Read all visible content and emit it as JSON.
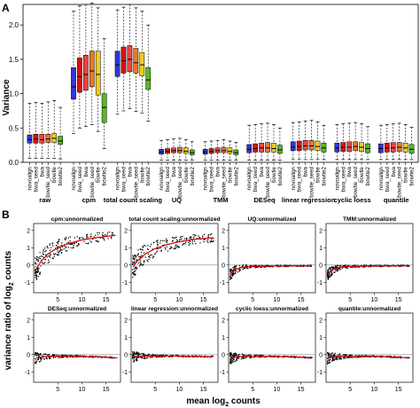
{
  "chart_data": [
    {
      "type": "box",
      "panel_letter": "A",
      "ylabel": "Variance",
      "ylim": [
        0,
        2.0
      ],
      "y_ticks": [
        "0.0",
        "0.5",
        "1.0",
        "1.5",
        "2.0"
      ],
      "aligners": [
        "novoalign",
        "bwa_seed",
        "bwa",
        "bowtie_seed",
        "bowtie",
        "bowtie2"
      ],
      "aligner_colors": [
        "#3333dd",
        "#dd1111",
        "#ee4444",
        "#ee7722",
        "#eecc22",
        "#55bb22"
      ],
      "groups": [
        {
          "name": "raw",
          "boxes": [
            {
              "q1": 0.28,
              "med": 0.33,
              "q3": 0.4,
              "wlo": 0.06,
              "whi": 0.86
            },
            {
              "q1": 0.28,
              "med": 0.34,
              "q3": 0.41,
              "wlo": 0.06,
              "whi": 0.87
            },
            {
              "q1": 0.28,
              "med": 0.33,
              "q3": 0.41,
              "wlo": 0.06,
              "whi": 0.86
            },
            {
              "q1": 0.29,
              "med": 0.34,
              "q3": 0.41,
              "wlo": 0.06,
              "whi": 0.88
            },
            {
              "q1": 0.29,
              "med": 0.35,
              "q3": 0.42,
              "wlo": 0.06,
              "whi": 0.9
            },
            {
              "q1": 0.26,
              "med": 0.31,
              "q3": 0.38,
              "wlo": 0.05,
              "whi": 0.8
            }
          ]
        },
        {
          "name": "cpm",
          "boxes": [
            {
              "q1": 0.92,
              "med": 1.1,
              "q3": 1.38,
              "wlo": 0.42,
              "whi": 2.2
            },
            {
              "q1": 1.02,
              "med": 1.25,
              "q3": 1.52,
              "wlo": 0.5,
              "whi": 2.28
            },
            {
              "q1": 1.05,
              "med": 1.28,
              "q3": 1.56,
              "wlo": 0.52,
              "whi": 2.3
            },
            {
              "q1": 1.1,
              "med": 1.33,
              "q3": 1.62,
              "wlo": 0.55,
              "whi": 2.32
            },
            {
              "q1": 0.98,
              "med": 1.28,
              "q3": 1.62,
              "wlo": 0.45,
              "whi": 2.25
            },
            {
              "q1": 0.58,
              "med": 0.8,
              "q3": 1.0,
              "wlo": 0.2,
              "whi": 1.8
            }
          ]
        },
        {
          "name": "total count scaling",
          "boxes": [
            {
              "q1": 1.25,
              "med": 1.42,
              "q3": 1.62,
              "wlo": 0.7,
              "whi": 2.22
            },
            {
              "q1": 1.3,
              "med": 1.48,
              "q3": 1.68,
              "wlo": 0.75,
              "whi": 2.26
            },
            {
              "q1": 1.32,
              "med": 1.5,
              "q3": 1.7,
              "wlo": 0.78,
              "whi": 2.3
            },
            {
              "q1": 1.3,
              "med": 1.45,
              "q3": 1.66,
              "wlo": 0.74,
              "whi": 2.25
            },
            {
              "q1": 1.26,
              "med": 1.42,
              "q3": 1.6,
              "wlo": 0.72,
              "whi": 2.2
            },
            {
              "q1": 1.06,
              "med": 1.2,
              "q3": 1.38,
              "wlo": 0.6,
              "whi": 2.0
            }
          ]
        },
        {
          "name": "UQ",
          "boxes": [
            {
              "q1": 0.12,
              "med": 0.15,
              "q3": 0.19,
              "wlo": 0.03,
              "whi": 0.32
            },
            {
              "q1": 0.13,
              "med": 0.16,
              "q3": 0.2,
              "wlo": 0.03,
              "whi": 0.33
            },
            {
              "q1": 0.14,
              "med": 0.17,
              "q3": 0.21,
              "wlo": 0.03,
              "whi": 0.34
            },
            {
              "q1": 0.14,
              "med": 0.17,
              "q3": 0.22,
              "wlo": 0.03,
              "whi": 0.35
            },
            {
              "q1": 0.13,
              "med": 0.16,
              "q3": 0.21,
              "wlo": 0.03,
              "whi": 0.33
            },
            {
              "q1": 0.11,
              "med": 0.14,
              "q3": 0.18,
              "wlo": 0.03,
              "whi": 0.3
            }
          ]
        },
        {
          "name": "TMM",
          "boxes": [
            {
              "q1": 0.12,
              "med": 0.15,
              "q3": 0.19,
              "wlo": 0.03,
              "whi": 0.3
            },
            {
              "q1": 0.13,
              "med": 0.16,
              "q3": 0.2,
              "wlo": 0.03,
              "whi": 0.31
            },
            {
              "q1": 0.14,
              "med": 0.17,
              "q3": 0.21,
              "wlo": 0.03,
              "whi": 0.32
            },
            {
              "q1": 0.14,
              "med": 0.17,
              "q3": 0.22,
              "wlo": 0.03,
              "whi": 0.33
            },
            {
              "q1": 0.13,
              "med": 0.16,
              "q3": 0.21,
              "wlo": 0.03,
              "whi": 0.31
            },
            {
              "q1": 0.11,
              "med": 0.14,
              "q3": 0.18,
              "wlo": 0.03,
              "whi": 0.29
            }
          ]
        },
        {
          "name": "DESeq",
          "boxes": [
            {
              "q1": 0.14,
              "med": 0.19,
              "q3": 0.26,
              "wlo": 0.03,
              "whi": 0.54
            },
            {
              "q1": 0.15,
              "med": 0.2,
              "q3": 0.27,
              "wlo": 0.03,
              "whi": 0.55
            },
            {
              "q1": 0.15,
              "med": 0.21,
              "q3": 0.28,
              "wlo": 0.03,
              "whi": 0.56
            },
            {
              "q1": 0.15,
              "med": 0.21,
              "q3": 0.29,
              "wlo": 0.03,
              "whi": 0.57
            },
            {
              "q1": 0.15,
              "med": 0.2,
              "q3": 0.28,
              "wlo": 0.03,
              "whi": 0.55
            },
            {
              "q1": 0.13,
              "med": 0.18,
              "q3": 0.25,
              "wlo": 0.03,
              "whi": 0.5
            }
          ]
        },
        {
          "name": "linear regression",
          "boxes": [
            {
              "q1": 0.17,
              "med": 0.22,
              "q3": 0.3,
              "wlo": 0.04,
              "whi": 0.58
            },
            {
              "q1": 0.17,
              "med": 0.23,
              "q3": 0.31,
              "wlo": 0.04,
              "whi": 0.59
            },
            {
              "q1": 0.18,
              "med": 0.24,
              "q3": 0.32,
              "wlo": 0.04,
              "whi": 0.6
            },
            {
              "q1": 0.18,
              "med": 0.24,
              "q3": 0.32,
              "wlo": 0.04,
              "whi": 0.61
            },
            {
              "q1": 0.17,
              "med": 0.23,
              "q3": 0.31,
              "wlo": 0.04,
              "whi": 0.59
            },
            {
              "q1": 0.15,
              "med": 0.21,
              "q3": 0.28,
              "wlo": 0.04,
              "whi": 0.54
            }
          ]
        },
        {
          "name": "cyclic loess",
          "boxes": [
            {
              "q1": 0.15,
              "med": 0.21,
              "q3": 0.28,
              "wlo": 0.04,
              "whi": 0.55
            },
            {
              "q1": 0.16,
              "med": 0.22,
              "q3": 0.29,
              "wlo": 0.04,
              "whi": 0.56
            },
            {
              "q1": 0.16,
              "med": 0.22,
              "q3": 0.3,
              "wlo": 0.04,
              "whi": 0.57
            },
            {
              "q1": 0.17,
              "med": 0.23,
              "q3": 0.3,
              "wlo": 0.04,
              "whi": 0.58
            },
            {
              "q1": 0.16,
              "med": 0.22,
              "q3": 0.29,
              "wlo": 0.04,
              "whi": 0.56
            },
            {
              "q1": 0.14,
              "med": 0.2,
              "q3": 0.27,
              "wlo": 0.04,
              "whi": 0.52
            }
          ]
        },
        {
          "name": "quantile",
          "boxes": [
            {
              "q1": 0.14,
              "med": 0.2,
              "q3": 0.27,
              "wlo": 0.04,
              "whi": 0.54
            },
            {
              "q1": 0.15,
              "med": 0.21,
              "q3": 0.28,
              "wlo": 0.04,
              "whi": 0.55
            },
            {
              "q1": 0.15,
              "med": 0.21,
              "q3": 0.29,
              "wlo": 0.04,
              "whi": 0.56
            },
            {
              "q1": 0.16,
              "med": 0.22,
              "q3": 0.29,
              "wlo": 0.04,
              "whi": 0.57
            },
            {
              "q1": 0.15,
              "med": 0.21,
              "q3": 0.28,
              "wlo": 0.04,
              "whi": 0.55
            },
            {
              "q1": 0.13,
              "med": 0.19,
              "q3": 0.26,
              "wlo": 0.04,
              "whi": 0.51
            }
          ]
        }
      ]
    },
    {
      "type": "scatter",
      "panel_letter": "B",
      "xlabel": "mean log",
      "xlabel_sub": "2",
      "xlabel_end": " counts",
      "ylabel": "variance ratio of log",
      "ylabel_sub": "2",
      "ylabel_end": " counts",
      "xlim": [
        0,
        18
      ],
      "ylim": [
        -1.6,
        2.4
      ],
      "x_ticks": [
        5,
        10,
        15
      ],
      "y_ticks": [
        -1,
        0,
        1,
        2
      ],
      "trend_color": "#dd0000",
      "panels": [
        {
          "title": "cpm:unnormalized",
          "trend": [
            [
              0.5,
              -0.25
            ],
            [
              1.5,
              0.2
            ],
            [
              3,
              0.65
            ],
            [
              5,
              1.0
            ],
            [
              7,
              1.22
            ],
            [
              10,
              1.45
            ],
            [
              13,
              1.58
            ],
            [
              17,
              1.72
            ]
          ]
        },
        {
          "title": "total count scaling:unnormalized",
          "trend": [
            [
              0.5,
              -0.05
            ],
            [
              1.5,
              0.3
            ],
            [
              3,
              0.65
            ],
            [
              5,
              0.95
            ],
            [
              7,
              1.15
            ],
            [
              10,
              1.35
            ],
            [
              13,
              1.48
            ],
            [
              17,
              1.58
            ]
          ]
        },
        {
          "title": "UQ:unnormalized",
          "trend": [
            [
              0.5,
              -0.5
            ],
            [
              1.5,
              -0.25
            ],
            [
              3,
              -0.12
            ],
            [
              5,
              -0.08
            ],
            [
              8,
              -0.06
            ],
            [
              12,
              -0.05
            ],
            [
              17,
              -0.04
            ]
          ]
        },
        {
          "title": "TMM:unnormalized",
          "trend": [
            [
              0.5,
              -0.5
            ],
            [
              1.5,
              -0.25
            ],
            [
              3,
              -0.12
            ],
            [
              5,
              -0.08
            ],
            [
              8,
              -0.06
            ],
            [
              12,
              -0.05
            ],
            [
              17,
              -0.04
            ]
          ]
        },
        {
          "title": "DESeq:unnormalized",
          "trend": [
            [
              0.5,
              -0.2
            ],
            [
              2,
              -0.12
            ],
            [
              4,
              -0.1
            ],
            [
              8,
              -0.1
            ],
            [
              12,
              -0.12
            ],
            [
              17,
              -0.18
            ]
          ]
        },
        {
          "title": "linear regression:unnormalized",
          "trend": [
            [
              0.5,
              -0.1
            ],
            [
              4,
              -0.08
            ],
            [
              8,
              -0.08
            ],
            [
              12,
              -0.1
            ],
            [
              17,
              -0.12
            ]
          ]
        },
        {
          "title": "cyclic loess:unnormalized",
          "trend": [
            [
              0.5,
              -0.2
            ],
            [
              2,
              -0.12
            ],
            [
              4,
              -0.1
            ],
            [
              8,
              -0.1
            ],
            [
              12,
              -0.12
            ],
            [
              17,
              -0.18
            ]
          ]
        },
        {
          "title": "quantile:unnormalized",
          "trend": [
            [
              0.5,
              -0.2
            ],
            [
              2,
              -0.12
            ],
            [
              4,
              -0.1
            ],
            [
              8,
              -0.1
            ],
            [
              12,
              -0.12
            ],
            [
              17,
              -0.18
            ]
          ]
        }
      ]
    }
  ]
}
